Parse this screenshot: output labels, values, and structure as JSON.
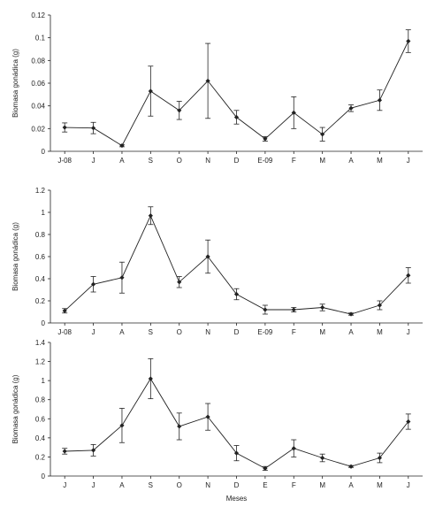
{
  "chart_data": [
    {
      "type": "line",
      "x": [
        "J-08",
        "J",
        "A",
        "S",
        "O",
        "N",
        "D",
        "E-09",
        "F",
        "M",
        "A",
        "M",
        "J"
      ],
      "values": [
        0.021,
        0.0205,
        0.005,
        0.053,
        0.036,
        0.062,
        0.03,
        0.011,
        0.034,
        0.015,
        0.038,
        0.045,
        0.097
      ],
      "error": [
        0.004,
        0.005,
        0.001,
        0.022,
        0.008,
        0.033,
        0.006,
        0.002,
        0.014,
        0.006,
        0.003,
        0.009,
        0.01
      ],
      "ylabel": "Biomasa gonádica (g)",
      "xlabel": "",
      "ylim": [
        0,
        0.12
      ],
      "yticks": [
        "0",
        "0.02",
        "0.04",
        "0.06",
        "0.08",
        "0.1",
        "0.12"
      ],
      "grid": false
    },
    {
      "type": "line",
      "x": [
        "J-08",
        "J",
        "A",
        "S",
        "O",
        "N",
        "D",
        "E-09",
        "F",
        "M",
        "A",
        "M",
        "J"
      ],
      "values": [
        0.11,
        0.35,
        0.41,
        0.97,
        0.37,
        0.6,
        0.26,
        0.12,
        0.12,
        0.14,
        0.08,
        0.16,
        0.43
      ],
      "error": [
        0.02,
        0.07,
        0.14,
        0.08,
        0.05,
        0.15,
        0.05,
        0.04,
        0.02,
        0.03,
        0.01,
        0.04,
        0.07
      ],
      "ylabel": "Biomasa gonádica (g)",
      "xlabel": "",
      "ylim": [
        0,
        1.2
      ],
      "yticks": [
        "0",
        "0.2",
        "0.4",
        "0.6",
        "0.8",
        "1",
        "1.2"
      ],
      "grid": false
    },
    {
      "type": "line",
      "x": [
        "J",
        "J",
        "A",
        "S",
        "O",
        "N",
        "D",
        "E",
        "F",
        "M",
        "A",
        "M",
        "J"
      ],
      "values": [
        0.26,
        0.27,
        0.53,
        1.02,
        0.52,
        0.62,
        0.24,
        0.08,
        0.29,
        0.19,
        0.1,
        0.19,
        0.57
      ],
      "error": [
        0.03,
        0.06,
        0.18,
        0.21,
        0.14,
        0.14,
        0.08,
        0.02,
        0.09,
        0.04,
        0.01,
        0.05,
        0.08
      ],
      "ylabel": "Biomasa gonádica (g)",
      "xlabel": "Meses",
      "ylim": [
        0,
        1.4
      ],
      "yticks": [
        "0",
        "0.2",
        "0.4",
        "0.6",
        "0.8",
        "1",
        "1.2",
        "1.4"
      ],
      "grid": false
    }
  ]
}
